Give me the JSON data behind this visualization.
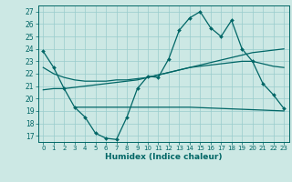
{
  "xlabel": "Humidex (Indice chaleur)",
  "bg_color": "#cce8e4",
  "grid_color": "#99cccc",
  "line_color": "#006666",
  "xlim": [
    -0.5,
    23.5
  ],
  "ylim": [
    16.5,
    27.5
  ],
  "yticks": [
    17,
    18,
    19,
    20,
    21,
    22,
    23,
    24,
    25,
    26,
    27
  ],
  "xticks": [
    0,
    1,
    2,
    3,
    4,
    5,
    6,
    7,
    8,
    9,
    10,
    11,
    12,
    13,
    14,
    15,
    16,
    17,
    18,
    19,
    20,
    21,
    22,
    23
  ],
  "line1_x": [
    0,
    1,
    2,
    3,
    4,
    5,
    6,
    7,
    8,
    9,
    10,
    11,
    12,
    13,
    14,
    15,
    16,
    17,
    18,
    19,
    20,
    21,
    22,
    23
  ],
  "line1_y": [
    23.8,
    22.5,
    20.8,
    19.3,
    18.5,
    17.2,
    16.8,
    16.7,
    18.5,
    20.8,
    21.8,
    21.7,
    23.2,
    25.5,
    26.5,
    27.0,
    25.7,
    25.0,
    26.3,
    24.0,
    23.0,
    21.2,
    20.3,
    19.2
  ],
  "line2_x": [
    0,
    1,
    2,
    3,
    4,
    5,
    6,
    7,
    8,
    9,
    10,
    11,
    12,
    13,
    14,
    15,
    16,
    17,
    18,
    19,
    20,
    21,
    22,
    23
  ],
  "line2_y": [
    20.7,
    20.8,
    20.8,
    20.9,
    21.0,
    21.1,
    21.2,
    21.3,
    21.4,
    21.5,
    21.7,
    21.9,
    22.1,
    22.3,
    22.5,
    22.7,
    22.9,
    23.1,
    23.3,
    23.5,
    23.7,
    23.8,
    23.9,
    24.0
  ],
  "line3_x": [
    0,
    1,
    2,
    3,
    4,
    5,
    6,
    7,
    8,
    9,
    10,
    11,
    12,
    13,
    14,
    15,
    16,
    17,
    18,
    19,
    20,
    21,
    22,
    23
  ],
  "line3_y": [
    22.5,
    22.0,
    21.7,
    21.5,
    21.4,
    21.4,
    21.4,
    21.5,
    21.5,
    21.6,
    21.7,
    21.9,
    22.1,
    22.3,
    22.5,
    22.6,
    22.7,
    22.8,
    22.9,
    23.0,
    23.0,
    22.8,
    22.6,
    22.5
  ],
  "line4_x": [
    3,
    14,
    23
  ],
  "line4_y": [
    19.3,
    19.3,
    19.0
  ]
}
